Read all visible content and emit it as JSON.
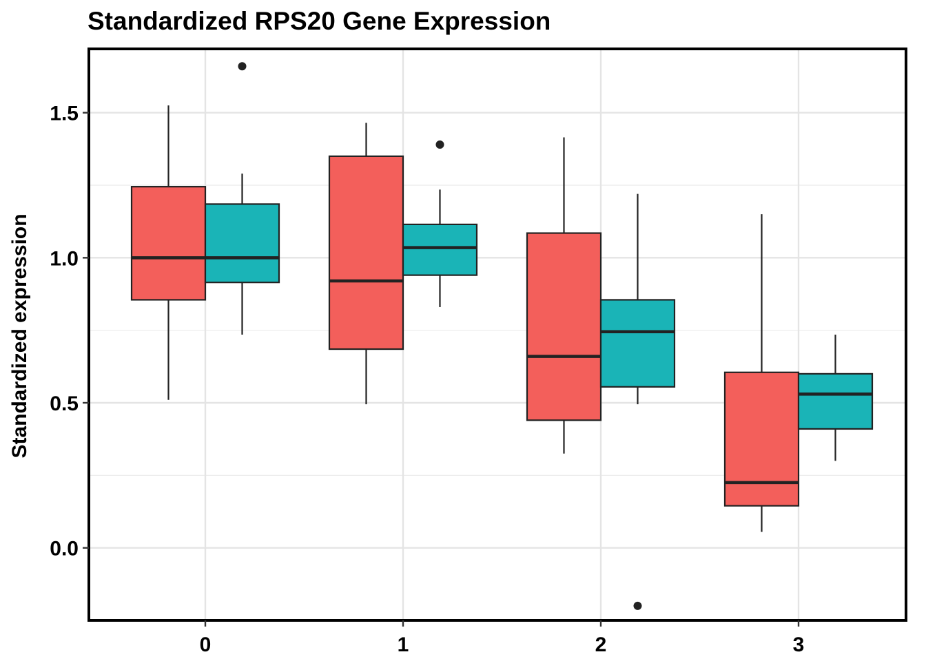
{
  "chart_data": {
    "type": "boxplot",
    "title": "Standardized RPS20 Gene Expression",
    "xlabel": "",
    "ylabel": "Standardized expression",
    "categories": [
      "0",
      "1",
      "2",
      "3"
    ],
    "y_ticks": [
      "0.0",
      "0.5",
      "1.0",
      "1.5"
    ],
    "y_tick_values": [
      0.0,
      0.5,
      1.0,
      1.5
    ],
    "ylim": [
      -0.25,
      1.72
    ],
    "grid": true,
    "legend": "none",
    "series": [
      {
        "color": "#F35F5B",
        "boxes": [
          {
            "category": "0",
            "whisker_low": 0.51,
            "q1": 0.855,
            "median": 1.0,
            "q3": 1.245,
            "whisker_high": 1.525,
            "outliers": []
          },
          {
            "category": "1",
            "whisker_low": 0.495,
            "q1": 0.685,
            "median": 0.92,
            "q3": 1.35,
            "whisker_high": 1.465,
            "outliers": []
          },
          {
            "category": "2",
            "whisker_low": 0.325,
            "q1": 0.44,
            "median": 0.66,
            "q3": 1.085,
            "whisker_high": 1.415,
            "outliers": []
          },
          {
            "category": "3",
            "whisker_low": 0.055,
            "q1": 0.145,
            "median": 0.225,
            "q3": 0.605,
            "whisker_high": 1.15,
            "outliers": []
          }
        ]
      },
      {
        "color": "#1AB4B7",
        "boxes": [
          {
            "category": "0",
            "whisker_low": 0.735,
            "q1": 0.915,
            "median": 1.0,
            "q3": 1.185,
            "whisker_high": 1.29,
            "outliers": [
              1.66
            ]
          },
          {
            "category": "1",
            "whisker_low": 0.83,
            "q1": 0.94,
            "median": 1.035,
            "q3": 1.115,
            "whisker_high": 1.235,
            "outliers": [
              1.39
            ]
          },
          {
            "category": "2",
            "whisker_low": 0.495,
            "q1": 0.555,
            "median": 0.745,
            "q3": 0.855,
            "whisker_high": 1.22,
            "outliers": [
              -0.2
            ]
          },
          {
            "category": "3",
            "whisker_low": 0.3,
            "q1": 0.41,
            "median": 0.53,
            "q3": 0.6,
            "whisker_high": 0.735,
            "outliers": []
          }
        ]
      }
    ]
  }
}
